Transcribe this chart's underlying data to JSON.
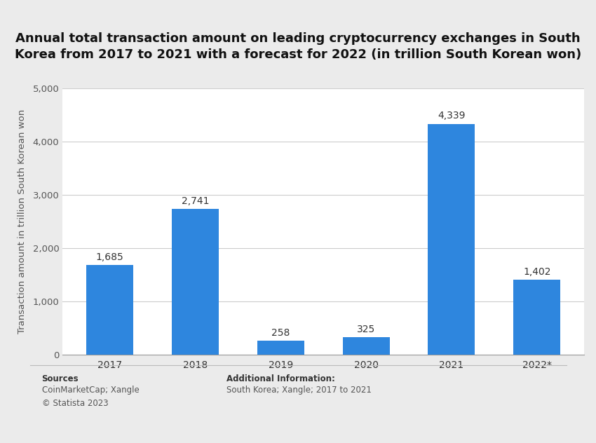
{
  "categories": [
    "2017",
    "2018",
    "2019",
    "2020",
    "2021",
    "2022*"
  ],
  "values": [
    1685,
    2741,
    258,
    325,
    4339,
    1402
  ],
  "bar_color": "#2E86DE",
  "title_line1": "Annual total transaction amount on leading cryptocurrency exchanges in South",
  "title_line2": "Korea from 2017 to 2021 with a forecast for 2022 (in trillion South Korean won)",
  "ylabel": "Transaction amount in trillion South Korean won",
  "ylim": [
    0,
    5000
  ],
  "yticks": [
    0,
    1000,
    2000,
    3000,
    4000,
    5000
  ],
  "background_color": "#ebebeb",
  "plot_background_color": "#ffffff",
  "source_bold": "Sources",
  "source_normal": "CoinMarketCap; Xangle\n© Statista 2023",
  "additional_bold": "Additional Information:",
  "additional_normal": "South Korea; Xangle; 2017 to 2021",
  "title_fontsize": 13,
  "label_fontsize": 10,
  "axis_fontsize": 9.5,
  "footer_fontsize": 8.5
}
